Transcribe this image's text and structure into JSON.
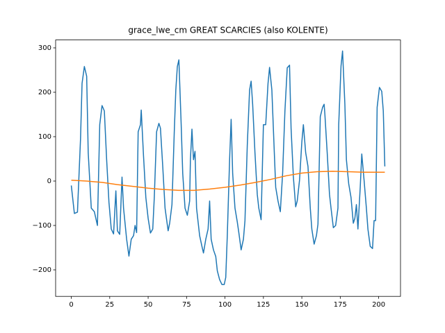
{
  "chart_data": {
    "type": "line",
    "title": "grace_lwe_cm GREAT SCARCIES (also KOLENTE)",
    "xlim": [
      -10.2,
      214.2
    ],
    "ylim": [
      -259.7,
      317.8
    ],
    "xticks": [
      0,
      25,
      50,
      75,
      100,
      125,
      150,
      175,
      200
    ],
    "yticks": [
      {
        "value": -200,
        "label": "−200"
      },
      {
        "value": -100,
        "label": "−100"
      },
      0,
      100,
      200,
      300
    ],
    "series": [
      {
        "color": "#1f77b4",
        "x": [
          0,
          2,
          4,
          6,
          7,
          8.5,
          10,
          11,
          13,
          15,
          17,
          18.5,
          20,
          21.5,
          23,
          24.5,
          26,
          27.5,
          29,
          30,
          31.5,
          33,
          34,
          36,
          37.5,
          39,
          40.5,
          41.5,
          42.5,
          43.5,
          45,
          45.5,
          47,
          48.5,
          50,
          51.5,
          53,
          54,
          55.5,
          57,
          58,
          59.5,
          61,
          63,
          64,
          65.5,
          67,
          68,
          69,
          70,
          71.5,
          72.5,
          74,
          75.5,
          77,
          77.5,
          78.5,
          79.5,
          80.5,
          81.5,
          83.5,
          85,
          86,
          87.5,
          89,
          90,
          91,
          92.5,
          94,
          95,
          96.5,
          98,
          99.5,
          100.5,
          101.5,
          103,
          104,
          105,
          106.5,
          108,
          109,
          110.5,
          112,
          113,
          114.5,
          116,
          117,
          118,
          119.5,
          121,
          122,
          123.5,
          125,
          126.5,
          128,
          129,
          130.5,
          132,
          133,
          134.5,
          136,
          137.5,
          139,
          140.5,
          142,
          143,
          144.5,
          146,
          147,
          148.5,
          150,
          151,
          152.5,
          154,
          155.5,
          156.5,
          158,
          159.5,
          160.5,
          162,
          163.5,
          164.5,
          165,
          166.5,
          168,
          169,
          170.5,
          172,
          173.5,
          174,
          175.5,
          176.5,
          178,
          179,
          180.5,
          182,
          183.5,
          184.5,
          185.5,
          186.5,
          188,
          189,
          190.5,
          192,
          193,
          194.5,
          196,
          197,
          198,
          199,
          200.5,
          202,
          203,
          204
        ],
        "values": [
          -10,
          -73,
          -70,
          95,
          220,
          258,
          236,
          64,
          -61,
          -69,
          -100,
          127,
          170,
          158,
          48,
          -48,
          -108,
          -119,
          -22,
          -112,
          -120,
          9,
          -61,
          -131,
          -169,
          -131,
          -123,
          -100,
          -116,
          111,
          127,
          160,
          56,
          -37,
          -84,
          -117,
          -108,
          -37,
          111,
          130,
          119,
          33,
          -61,
          -112,
          -95,
          -53,
          111,
          205,
          258,
          273,
          127,
          17,
          -61,
          -77,
          -45,
          48,
          117,
          48,
          67,
          -61,
          -123,
          -147,
          -162,
          -131,
          -108,
          -45,
          -131,
          -155,
          -170,
          -202,
          -222,
          -233,
          -233,
          -217,
          -123,
          48,
          139,
          17,
          -61,
          -92,
          -116,
          -155,
          -131,
          -89,
          80,
          205,
          225,
          173,
          64,
          -30,
          -61,
          -87,
          127,
          127,
          220,
          256,
          205,
          72,
          -14,
          -45,
          -69,
          17,
          158,
          255,
          261,
          119,
          9,
          -58,
          -45,
          2,
          88,
          127,
          64,
          33,
          -61,
          -108,
          -142,
          -123,
          -97,
          145,
          166,
          173,
          150,
          64,
          -30,
          -61,
          -105,
          -100,
          -61,
          127,
          259,
          293,
          173,
          48,
          -6,
          -37,
          -95,
          -84,
          -53,
          -108,
          -14,
          61,
          2,
          -61,
          -108,
          -147,
          -152,
          -89,
          -89,
          166,
          211,
          202,
          158,
          33
        ]
      },
      {
        "color": "#ff7f0e",
        "x": [
          0,
          10,
          20,
          30,
          40,
          50,
          60,
          70,
          80,
          90,
          100,
          110,
          120,
          130,
          140,
          150,
          160,
          170,
          180,
          190,
          204
        ],
        "values": [
          2,
          0,
          -3,
          -8,
          -12,
          -16,
          -19,
          -21,
          -21,
          -18,
          -14,
          -9,
          -3,
          4,
          12,
          18,
          21,
          22,
          21,
          20,
          20
        ]
      }
    ]
  }
}
